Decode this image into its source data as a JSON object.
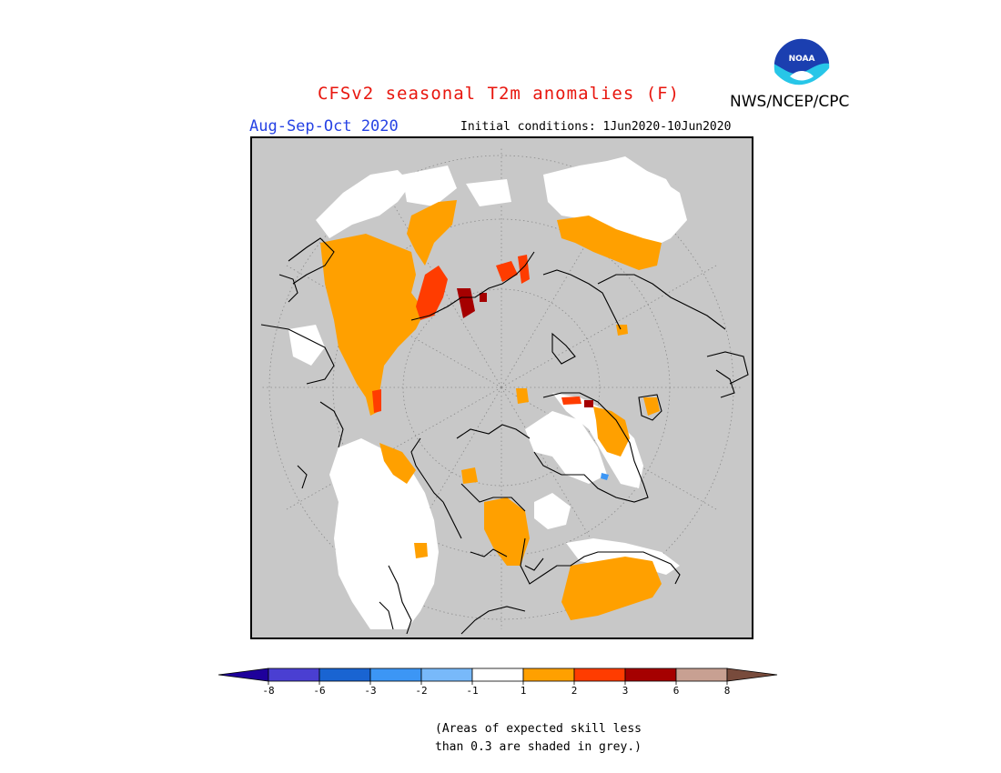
{
  "header": {
    "title": "CFSv2 seasonal T2m anomalies (F)",
    "period": "Aug-Sep-Oct 2020",
    "initial_conditions": "Initial conditions: 1Jun2020-10Jun2020",
    "agency": "NWS/NCEP/CPC",
    "logo_text": "NOAA"
  },
  "colors": {
    "title": "#e8160e",
    "period": "#2642e4",
    "low_skill_grey": "#c8c8c8",
    "neutral": "#ffffff",
    "warm_1_2": "#ffa000",
    "warm_2_3": "#ff3c00",
    "warm_3_6": "#a50000",
    "warm_6_8": "#c8a092",
    "warm_gt8": "#784b3c"
  },
  "legend": {
    "bins": [
      {
        "color": "#1e009b"
      },
      {
        "color": "#4a3fd2"
      },
      {
        "color": "#1964d2"
      },
      {
        "color": "#3c96f5"
      },
      {
        "color": "#78b9fa"
      },
      {
        "color": "#ffffff"
      },
      {
        "color": "#ffa000"
      },
      {
        "color": "#ff3c00"
      },
      {
        "color": "#a50000"
      },
      {
        "color": "#c8a092"
      },
      {
        "color": "#784b3c"
      }
    ],
    "tick_labels": [
      "-8",
      "-6",
      "-3",
      "-2",
      "-1",
      "1",
      "2",
      "3",
      "6",
      "8"
    ]
  },
  "note": {
    "line1": "(Areas of expected skill less",
    "line2": "than 0.3 are shaded in grey.)"
  }
}
